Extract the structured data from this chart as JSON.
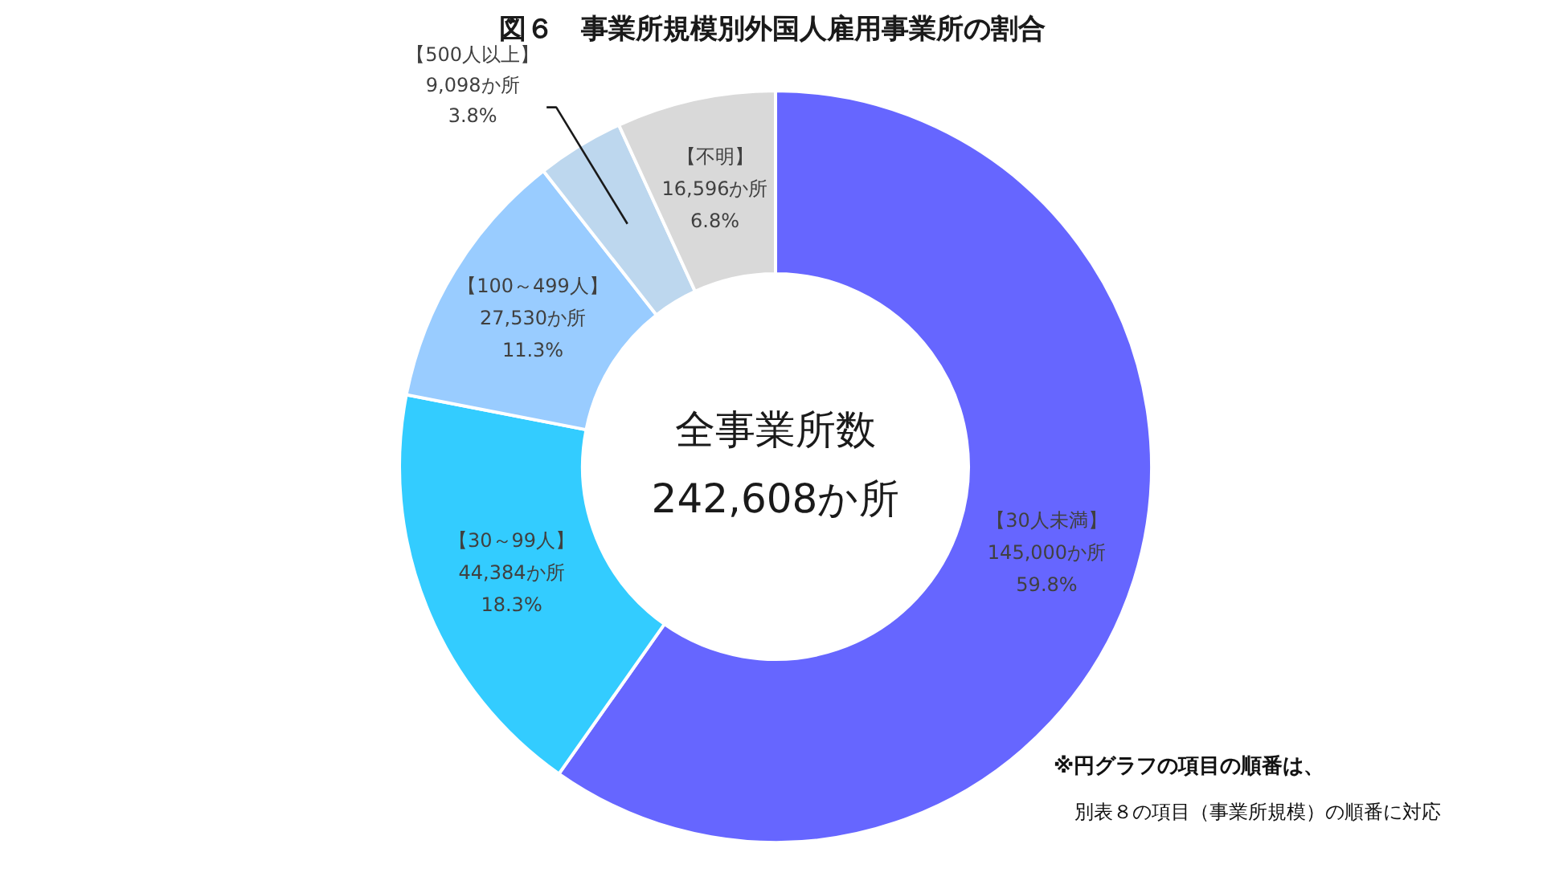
{
  "chart_data": {
    "type": "donut",
    "title": "図６　事業所規模別外国人雇用事業所の割合",
    "categories": [
      "【30人未満】",
      "【30～99人】",
      "【100～499人】",
      "【500人以上】",
      "【不明】"
    ],
    "values": [
      145000,
      44384,
      27530,
      9098,
      16596
    ],
    "colors": [
      "#6666ff",
      "#33ccff",
      "#99ccff",
      "#bdd7ee",
      "#d9d9d9"
    ],
    "value_labels": [
      "145,000か所\n59.8%",
      "44,384か所\n18.3%",
      "27,530か所\n11.3%",
      "9,098か所\n3.8%",
      "16,596か所\n6.8%"
    ],
    "annotations": [
      "全事業所数",
      "242,608か所",
      "※円グラフの項目の順番は、",
      "別表８の項目（事業所規模）の順番に対応"
    ]
  }
}
